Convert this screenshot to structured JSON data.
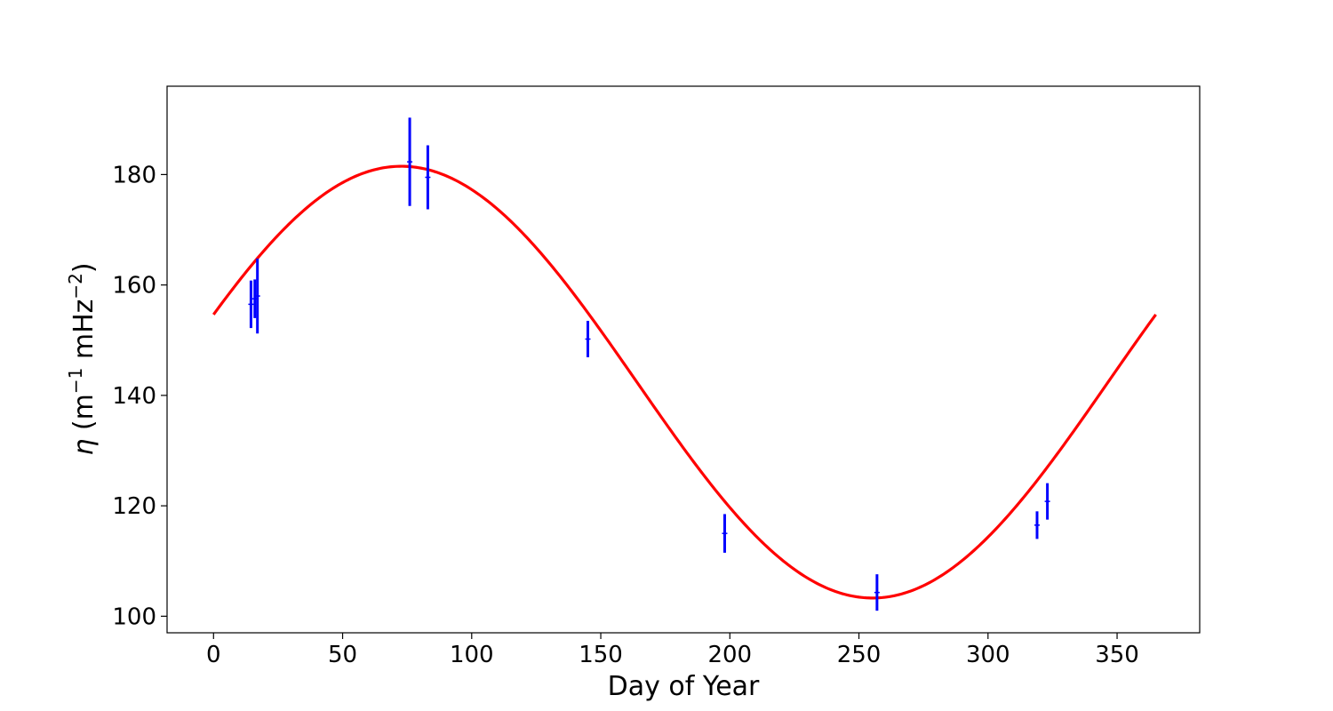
{
  "chart_data": {
    "type": "scatter",
    "xlabel": "Day of Year",
    "ylabel": {
      "symbol": "η",
      "open": " (m",
      "sup1": "−1",
      "mid": " mHz",
      "sup2": "−2",
      "close": ")"
    },
    "xlim": [
      -18,
      382
    ],
    "ylim": [
      97,
      196
    ],
    "xticks": [
      0,
      50,
      100,
      150,
      200,
      250,
      300,
      350
    ],
    "yticks": [
      100,
      120,
      140,
      160,
      180
    ],
    "grid": false,
    "series": [
      {
        "kind": "errorbar",
        "color": "#0000ff",
        "points": [
          {
            "x": 14.5,
            "y": 156.5,
            "err": 4.3
          },
          {
            "x": 16.0,
            "y": 157.5,
            "err": 3.5
          },
          {
            "x": 17.0,
            "y": 158.0,
            "err": 6.8
          },
          {
            "x": 76.0,
            "y": 182.3,
            "err": 8.0
          },
          {
            "x": 83.0,
            "y": 179.5,
            "err": 5.8
          },
          {
            "x": 145.0,
            "y": 150.2,
            "err": 3.3
          },
          {
            "x": 198.0,
            "y": 115.0,
            "err": 3.5
          },
          {
            "x": 257.0,
            "y": 104.3,
            "err": 3.3
          },
          {
            "x": 319.0,
            "y": 116.5,
            "err": 2.5
          },
          {
            "x": 323.0,
            "y": 120.8,
            "err": 3.3
          }
        ]
      },
      {
        "kind": "fit-line",
        "color": "#ff0000",
        "model": "sinusoid",
        "x_range": [
          0,
          365
        ],
        "mean": 142.4,
        "amplitude": 39.1,
        "period": 365,
        "peak_day": 72.75
      }
    ]
  }
}
